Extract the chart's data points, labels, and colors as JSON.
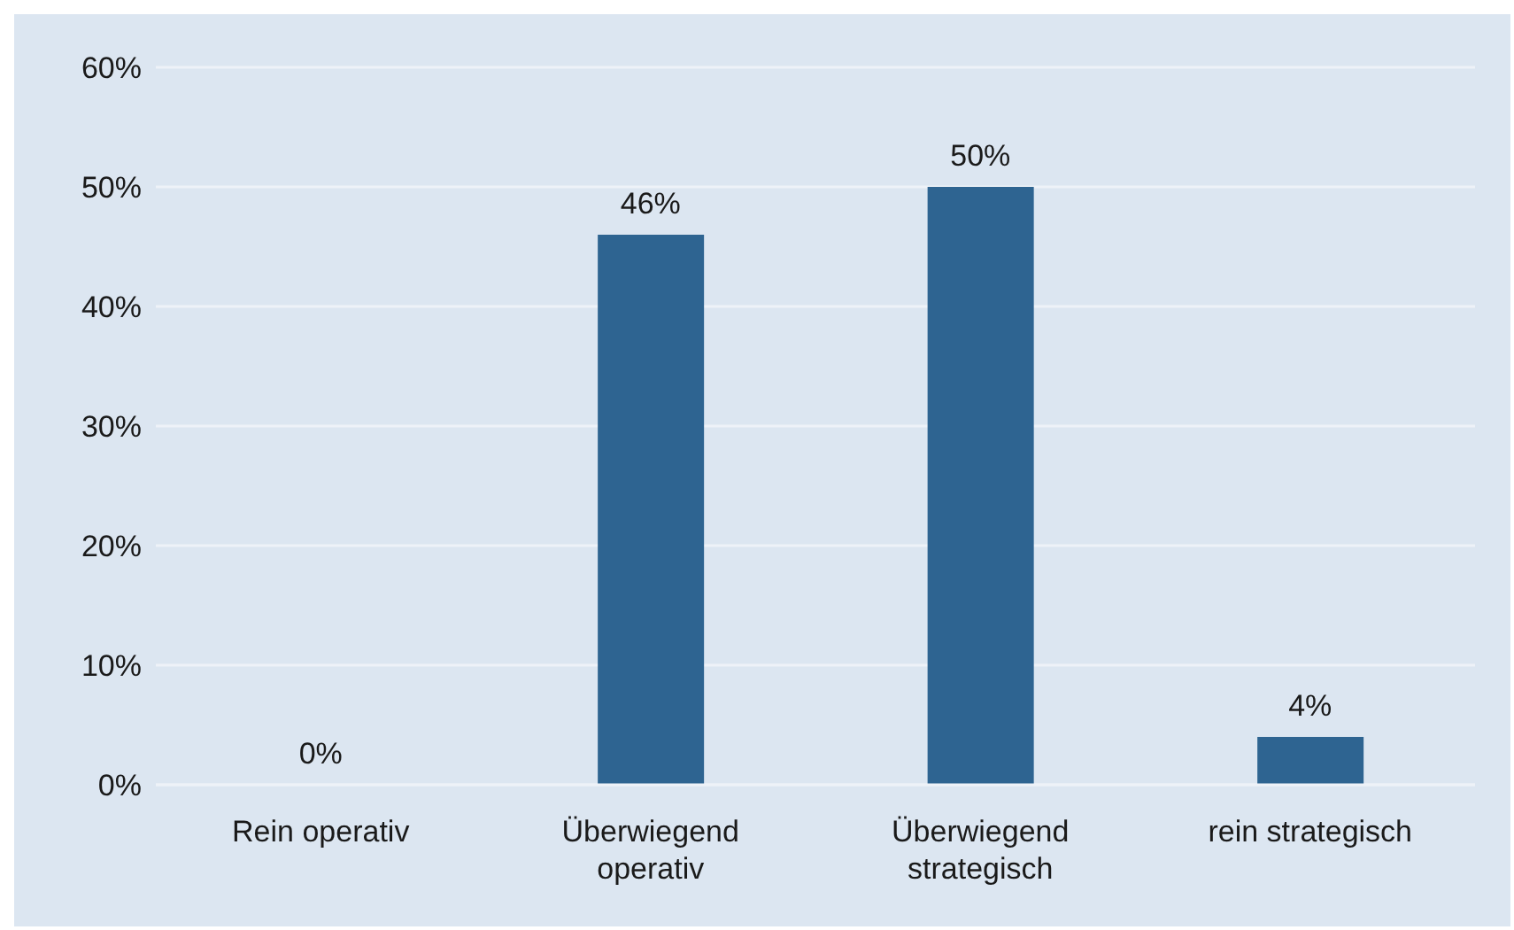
{
  "chart_data": {
    "type": "bar",
    "categories": [
      "Rein operativ",
      "Überwiegend operativ",
      "Überwiegend strategisch",
      "rein strategisch"
    ],
    "values": [
      0,
      46,
      50,
      4
    ],
    "color": "#2e6491",
    "value_labels": [
      "0%",
      "46%",
      "50%",
      "4%"
    ],
    "ylim": [
      0,
      60
    ],
    "yticks": [
      {
        "value": 0,
        "label": "0%"
      },
      {
        "value": 10,
        "label": "10%"
      },
      {
        "value": 20,
        "label": "20%"
      },
      {
        "value": 30,
        "label": "30%"
      },
      {
        "value": 40,
        "label": "40%"
      },
      {
        "value": 50,
        "label": "50%"
      },
      {
        "value": 60,
        "label": "60%"
      }
    ],
    "grid": "y"
  }
}
